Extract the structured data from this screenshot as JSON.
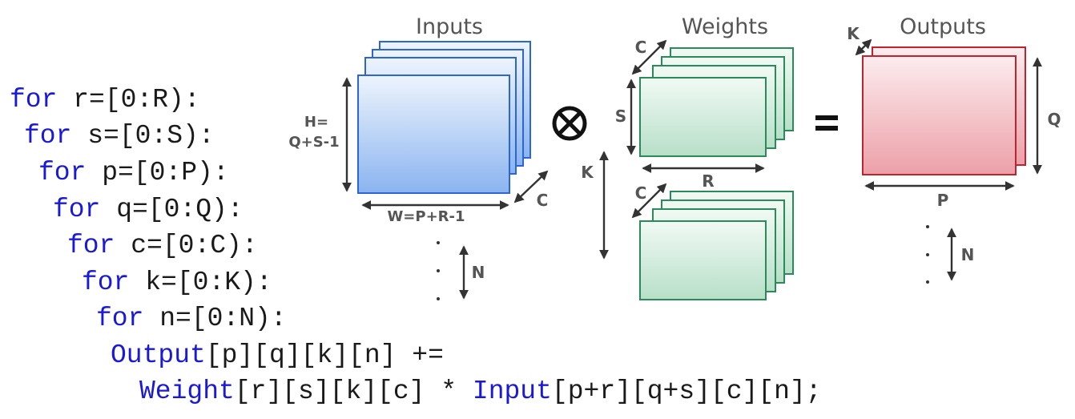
{
  "titles": {
    "inputs": "Inputs",
    "weights": "Weights",
    "outputs": "Outputs"
  },
  "operators": {
    "convolve": "⊗",
    "equals": "="
  },
  "inputs_block": {
    "height_label_1": "H=",
    "height_label_2": "Q+S-1",
    "width_label": "W=P+R-1",
    "channel_label": "C",
    "batch_label": "N"
  },
  "weights_block": {
    "channel_label_top": "C",
    "height_label": "S",
    "width_label": "R",
    "filters_label": "K",
    "channel_label_bottom": "C"
  },
  "outputs_block": {
    "channel_label": "K",
    "height_label": "Q",
    "width_label": "P",
    "batch_label": "N"
  },
  "code": {
    "lines": [
      {
        "kw": "for",
        "rest": " r=[0:R):"
      },
      {
        "kw": "for",
        "rest": " s=[0:S):"
      },
      {
        "kw": "for",
        "rest": " p=[0:P):"
      },
      {
        "kw": "for",
        "rest": " q=[0:Q):"
      },
      {
        "kw": "for",
        "rest": " c=[0:C):"
      },
      {
        "kw": "for",
        "rest": " k=[0:K):"
      },
      {
        "kw": "for",
        "rest": " n=[0:N):"
      }
    ],
    "body_1": {
      "kw": "Output",
      "rest": "[p][q][k][n] +="
    },
    "body_2": {
      "kw1": "Weight",
      "mid": "[r][s][k][c] * ",
      "kw2": "Input",
      "rest": "[p+r][q+s][c][n];"
    }
  },
  "colors": {
    "code_keyword": "#1a1ad6",
    "input_fill": "#d6e6fb",
    "input_stroke": "#2a66d6",
    "weight_fill": "#d9efe2",
    "weight_stroke": "#2a8a5a",
    "output_fill": "#f6cfd3",
    "output_stroke": "#c0232e"
  }
}
